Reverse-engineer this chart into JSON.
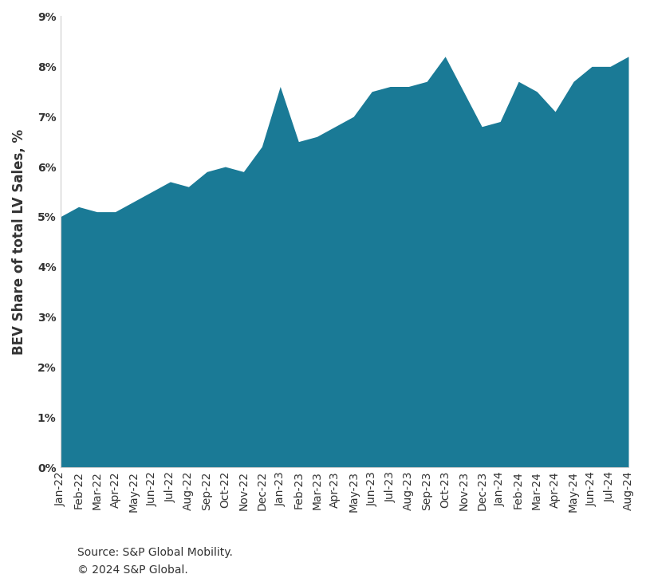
{
  "labels": [
    "Jan-22",
    "Feb-22",
    "Mar-22",
    "Apr-22",
    "May-22",
    "Jun-22",
    "Jul-22",
    "Aug-22",
    "Sep-22",
    "Oct-22",
    "Nov-22",
    "Dec-22",
    "Jan-23",
    "Feb-23",
    "Mar-23",
    "Apr-23",
    "May-23",
    "Jun-23",
    "Jul-23",
    "Aug-23",
    "Sep-23",
    "Oct-23",
    "Nov-23",
    "Dec-23",
    "Jan-24",
    "Feb-24",
    "Mar-24",
    "Apr-24",
    "May-24",
    "Jun-24",
    "Jul-24",
    "Aug-24"
  ],
  "values": [
    5.0,
    5.2,
    5.1,
    5.1,
    5.3,
    5.5,
    5.7,
    5.6,
    5.9,
    6.0,
    5.9,
    6.4,
    7.6,
    6.5,
    6.6,
    6.8,
    7.0,
    7.5,
    7.6,
    7.6,
    7.7,
    8.2,
    7.5,
    6.8,
    6.9,
    7.7,
    7.5,
    7.1,
    7.7,
    8.0,
    8.0,
    8.2
  ],
  "fill_color": "#1a7a96",
  "ylabel": "BEV Share of total LV Sales, %",
  "ylim": [
    0,
    9
  ],
  "yticks": [
    0,
    1,
    2,
    3,
    4,
    5,
    6,
    7,
    8,
    9
  ],
  "source_text": "Source: S&P Global Mobility.",
  "copyright_text": "© 2024 S&P Global.",
  "background_color": "#ffffff",
  "spine_color": "#cccccc",
  "text_color": "#333333",
  "tick_fontsize": 10,
  "ylabel_fontsize": 12,
  "source_fontsize": 10
}
